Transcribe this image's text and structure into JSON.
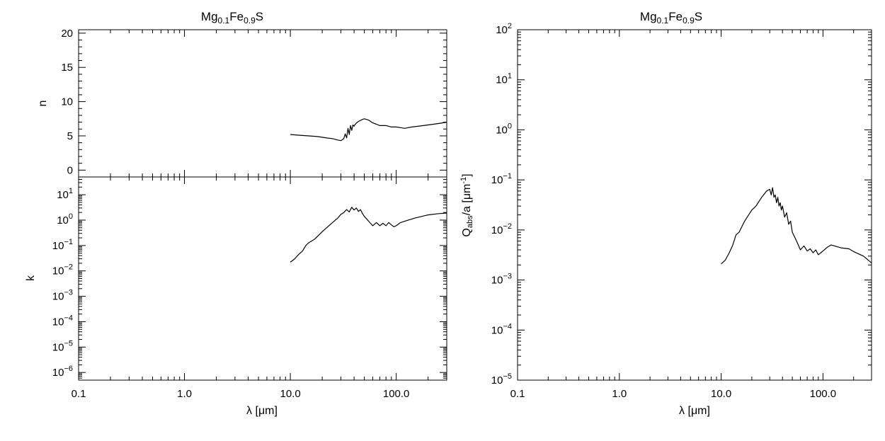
{
  "chart_data": [
    {
      "type": "line",
      "panel": "n",
      "title": "Mg0.1Fe0.9S",
      "title_parts": {
        "base1": "Mg",
        "sub1": "0.1",
        "base2": "Fe",
        "sub2": "0.9",
        "base3": "S"
      },
      "xlabel": "λ [μm]",
      "ylabel": "n",
      "xscale": "log",
      "yscale": "linear",
      "xlim": [
        0.1,
        300
      ],
      "ylim": [
        -1,
        20.5
      ],
      "yticks": [
        "0",
        "5",
        "10",
        "15",
        "20"
      ],
      "grid": false,
      "series": [
        {
          "x": [
            10,
            12,
            15,
            18,
            20,
            22,
            25,
            28,
            30,
            32,
            33,
            34,
            35,
            36,
            37,
            38,
            39,
            40,
            41,
            43,
            45,
            48,
            50,
            55,
            60,
            65,
            70,
            80,
            90,
            100,
            110,
            120,
            140,
            160,
            200,
            250,
            300
          ],
          "y": [
            5.2,
            5.1,
            5.0,
            4.9,
            4.8,
            4.7,
            4.6,
            4.4,
            4.3,
            4.6,
            5.3,
            4.7,
            6.1,
            5.2,
            6.5,
            5.8,
            6.6,
            6.4,
            6.7,
            7.0,
            7.2,
            7.4,
            7.5,
            7.3,
            6.9,
            6.7,
            6.5,
            6.5,
            6.3,
            6.3,
            6.2,
            6.1,
            6.3,
            6.4,
            6.6,
            6.8,
            7.0
          ]
        }
      ]
    },
    {
      "type": "line",
      "panel": "k",
      "xlabel": "λ [μm]",
      "ylabel": "k",
      "xscale": "log",
      "yscale": "log",
      "xlim": [
        0.1,
        300
      ],
      "ylim": [
        5e-07,
        50
      ],
      "yticks": [
        "10^-6",
        "10^-5",
        "10^-4",
        "10^-3",
        "10^-2",
        "10^-1",
        "10^0",
        "10^1"
      ],
      "xticks": [
        "0.1",
        "1.0",
        "10.0",
        "100.0"
      ],
      "grid": false,
      "series": [
        {
          "x": [
            10,
            11,
            12,
            13,
            14,
            15,
            17,
            20,
            22,
            25,
            28,
            30,
            32,
            34,
            36,
            38,
            40,
            42,
            44,
            46,
            48,
            50,
            55,
            60,
            65,
            70,
            75,
            80,
            85,
            90,
            95,
            100,
            110,
            120,
            150,
            200,
            250,
            300
          ],
          "y": [
            0.022,
            0.03,
            0.045,
            0.06,
            0.1,
            0.13,
            0.18,
            0.35,
            0.5,
            0.8,
            1.2,
            1.7,
            2.0,
            2.6,
            2.1,
            3.2,
            2.5,
            3.0,
            2.2,
            2.6,
            1.8,
            1.4,
            0.9,
            0.6,
            0.8,
            0.6,
            0.75,
            0.6,
            0.8,
            0.65,
            0.55,
            0.6,
            0.8,
            0.9,
            1.2,
            1.6,
            1.8,
            1.9
          ]
        }
      ]
    },
    {
      "type": "line",
      "panel": "qabs",
      "title": "Mg0.1Fe0.9S",
      "title_parts": {
        "base1": "Mg",
        "sub1": "0.1",
        "base2": "Fe",
        "sub2": "0.9",
        "base3": "S"
      },
      "xlabel": "λ [μm]",
      "ylabel": "Qabs/a [μm^-1]",
      "ylabel_parts": {
        "q": "Q",
        "sub": "abs",
        "mid": "/a [μm",
        "sup": "-1",
        "end": "]"
      },
      "xscale": "log",
      "yscale": "log",
      "xlim": [
        0.1,
        300
      ],
      "ylim": [
        1e-05,
        100
      ],
      "yticks": [
        "10^-5",
        "10^-4",
        "10^-3",
        "10^-2",
        "10^-1",
        "10^0",
        "10^1",
        "10^2"
      ],
      "xticks": [
        "0.1",
        "1.0",
        "10.0",
        "100.0"
      ],
      "grid": false,
      "series": [
        {
          "x": [
            10,
            11,
            12,
            13,
            14,
            15,
            17,
            20,
            22,
            25,
            28,
            30,
            31,
            32,
            33,
            34,
            35,
            36,
            37,
            38,
            39,
            40,
            42,
            44,
            46,
            48,
            50,
            55,
            60,
            65,
            70,
            75,
            80,
            85,
            90,
            100,
            110,
            120,
            130,
            150,
            180,
            200,
            250,
            300
          ],
          "y": [
            0.0021,
            0.0025,
            0.0035,
            0.005,
            0.008,
            0.009,
            0.015,
            0.025,
            0.03,
            0.045,
            0.06,
            0.065,
            0.05,
            0.07,
            0.045,
            0.05,
            0.035,
            0.045,
            0.03,
            0.035,
            0.025,
            0.03,
            0.018,
            0.022,
            0.013,
            0.015,
            0.009,
            0.006,
            0.004,
            0.0048,
            0.0038,
            0.0042,
            0.0035,
            0.004,
            0.0032,
            0.0038,
            0.0045,
            0.005,
            0.0048,
            0.0044,
            0.0042,
            0.0037,
            0.003,
            0.0022
          ]
        }
      ]
    }
  ]
}
